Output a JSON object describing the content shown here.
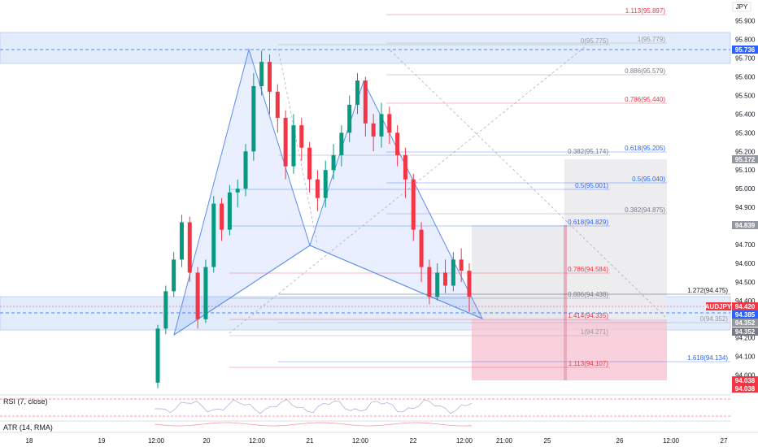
{
  "currency_label": "JPY",
  "chart_data": {
    "type": "candlestick",
    "symbol": "AUDJPY",
    "ylim": [
      93.92,
      95.99
    ],
    "y_ticks": [
      95.9,
      95.8,
      95.7,
      95.6,
      95.5,
      95.4,
      95.3,
      95.2,
      95.1,
      95.0,
      94.9,
      94.8,
      94.7,
      94.6,
      94.5,
      94.4,
      94.3,
      94.2,
      94.1,
      94.0
    ],
    "x_ticks": [
      "18",
      "19",
      "12:00",
      "20",
      "12:00",
      "21",
      "12:00",
      "22",
      "12:00",
      "21:00",
      "25",
      "26",
      "12:00",
      "27"
    ],
    "price_tags": [
      {
        "value": "95.736",
        "color": "#2962ff"
      },
      {
        "value": "95.172",
        "color": "#9598a1"
      },
      {
        "value": "94.839",
        "color": "#9598a1"
      },
      {
        "value": "94.420",
        "color": "#f23645"
      },
      {
        "value": "94.385",
        "color": "#2962ff"
      },
      {
        "value": "94.352",
        "color": "#9598a1"
      },
      {
        "value": "94.352",
        "color": "#787b86"
      },
      {
        "value": "94.038",
        "color": "#f23645"
      },
      {
        "value": "94.038",
        "color": "#f23645"
      }
    ],
    "candles": [
      [
        93.96,
        94.25,
        93.93,
        94.27
      ],
      [
        94.25,
        94.45,
        94.22,
        94.48
      ],
      [
        94.45,
        94.62,
        94.42,
        94.66
      ],
      [
        94.62,
        94.82,
        94.58,
        94.86
      ],
      [
        94.82,
        94.55,
        94.5,
        94.85
      ],
      [
        94.55,
        94.3,
        94.25,
        94.58
      ],
      [
        94.3,
        94.58,
        94.28,
        94.62
      ],
      [
        94.58,
        94.92,
        94.55,
        94.96
      ],
      [
        94.92,
        94.78,
        94.72,
        94.95
      ],
      [
        94.78,
        94.98,
        94.75,
        95.02
      ],
      [
        94.98,
        95.0,
        94.9,
        95.05
      ],
      [
        95.0,
        95.2,
        94.96,
        95.24
      ],
      [
        95.2,
        95.55,
        95.15,
        95.62
      ],
      [
        95.55,
        95.68,
        95.5,
        95.74
      ],
      [
        95.68,
        95.52,
        95.4,
        95.72
      ],
      [
        95.52,
        95.38,
        95.3,
        95.56
      ],
      [
        95.38,
        95.12,
        95.05,
        95.42
      ],
      [
        95.12,
        95.34,
        95.08,
        95.4
      ],
      [
        95.34,
        95.22,
        95.15,
        95.38
      ],
      [
        95.22,
        95.05,
        94.98,
        95.25
      ],
      [
        95.05,
        94.95,
        94.88,
        95.1
      ],
      [
        94.95,
        95.1,
        94.9,
        95.15
      ],
      [
        95.1,
        95.18,
        95.05,
        95.24
      ],
      [
        95.18,
        95.3,
        95.12,
        95.34
      ],
      [
        95.3,
        95.45,
        95.25,
        95.5
      ],
      [
        95.45,
        95.58,
        95.4,
        95.62
      ],
      [
        95.58,
        95.35,
        95.28,
        95.6
      ],
      [
        95.35,
        95.28,
        95.2,
        95.4
      ],
      [
        95.28,
        95.4,
        95.22,
        95.46
      ],
      [
        95.4,
        95.3,
        95.24,
        95.44
      ],
      [
        95.3,
        95.18,
        95.12,
        95.34
      ],
      [
        95.18,
        95.05,
        94.95,
        95.22
      ],
      [
        95.05,
        94.78,
        94.72,
        95.08
      ],
      [
        94.78,
        94.58,
        94.5,
        94.82
      ],
      [
        94.58,
        94.42,
        94.38,
        94.62
      ],
      [
        94.42,
        94.55,
        94.4,
        94.6
      ],
      [
        94.55,
        94.48,
        94.44,
        94.62
      ],
      [
        94.48,
        94.62,
        94.45,
        94.66
      ],
      [
        94.62,
        94.56,
        94.5,
        94.68
      ],
      [
        94.56,
        94.42,
        94.34,
        94.6
      ]
    ],
    "fib_levels": [
      {
        "label": "1.113(95.897)",
        "color": "#f23645"
      },
      {
        "label": "1(95.779)",
        "color": "#9598a1"
      },
      {
        "label": "0.886(95.579)",
        "color": "#787b86"
      },
      {
        "label": "0.786(95.440)",
        "color": "#f23645"
      },
      {
        "label": "0.618(95.205)",
        "color": "#2962ff"
      },
      {
        "label": "0.5(95.040)",
        "color": "#2962ff"
      },
      {
        "label": "0.382(94.875)",
        "color": "#787b86"
      },
      {
        "label": "1.272(94.475)",
        "color": "#131722"
      },
      {
        "label": "0(94.352)",
        "color": "#9598a1"
      },
      {
        "label": "1.618(94.134)",
        "color": "#2962ff"
      },
      {
        "label": "0.382(95.174)",
        "color": "#787b86"
      },
      {
        "label": "0.5(95.001)",
        "color": "#2962ff"
      },
      {
        "label": "0.618(94.829)",
        "color": "#2962ff"
      },
      {
        "label": "0.786(94.584)",
        "color": "#f23645"
      },
      {
        "label": "0.886(94.438)",
        "color": "#787b86"
      },
      {
        "label": "1.414(94.335)",
        "color": "#f23645"
      },
      {
        "label": "1(94.271)",
        "color": "#9598a1"
      },
      {
        "label": "1.113(94.107)",
        "color": "#f23645"
      },
      {
        "label": "0(95.775)",
        "color": "#9598a1"
      }
    ]
  },
  "indicators": {
    "rsi_label": "RSI (7, close)",
    "atr_label": "ATR (14, RMA)"
  }
}
